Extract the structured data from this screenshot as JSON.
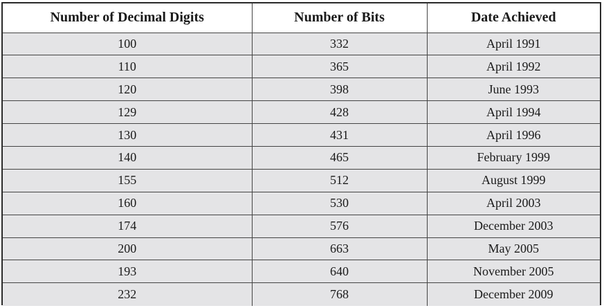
{
  "table": {
    "headers": [
      "Number of Decimal Digits",
      "Number of Bits",
      "Date Achieved"
    ],
    "rows": [
      [
        "100",
        "332",
        "April 1991"
      ],
      [
        "110",
        "365",
        "April 1992"
      ],
      [
        "120",
        "398",
        "June 1993"
      ],
      [
        "129",
        "428",
        "April 1994"
      ],
      [
        "130",
        "431",
        "April 1996"
      ],
      [
        "140",
        "465",
        "February 1999"
      ],
      [
        "155",
        "512",
        "August 1999"
      ],
      [
        "160",
        "530",
        "April 2003"
      ],
      [
        "174",
        "576",
        "December 2003"
      ],
      [
        "200",
        "663",
        "May 2005"
      ],
      [
        "193",
        "640",
        "November 2005"
      ],
      [
        "232",
        "768",
        "December 2009"
      ]
    ]
  }
}
